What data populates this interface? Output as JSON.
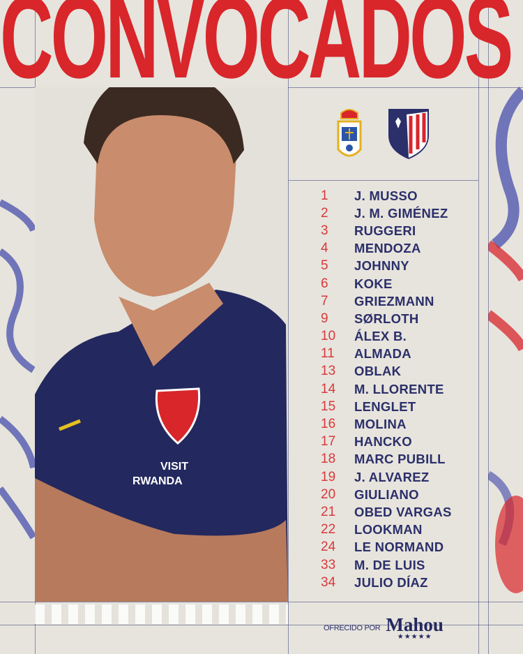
{
  "header": {
    "title": "CONVOCADOS"
  },
  "colors": {
    "title_red": "#d8262b",
    "navy": "#2b2f6a",
    "number_red": "#d8393c",
    "background": "#e7e4dd"
  },
  "crests": {
    "home": "real-oviedo-crest-icon",
    "away": "atletico-madrid-crest-icon"
  },
  "coach_shirt": {
    "sponsor_line1": "VISIT",
    "sponsor_line2": "RWANDA"
  },
  "squad": [
    {
      "number": "1",
      "name": "J. MUSSO"
    },
    {
      "number": "2",
      "name": "J. M. GIMÉNEZ"
    },
    {
      "number": "3",
      "name": "RUGGERI"
    },
    {
      "number": "4",
      "name": "MENDOZA"
    },
    {
      "number": "5",
      "name": "JOHNNY"
    },
    {
      "number": "6",
      "name": "KOKE"
    },
    {
      "number": "7",
      "name": "GRIEZMANN"
    },
    {
      "number": "9",
      "name": "SØRLOTH"
    },
    {
      "number": "10",
      "name": "ÁLEX B."
    },
    {
      "number": "11",
      "name": "ALMADA"
    },
    {
      "number": "13",
      "name": "OBLAK"
    },
    {
      "number": "14",
      "name": "M. LLORENTE"
    },
    {
      "number": "15",
      "name": "LENGLET"
    },
    {
      "number": "16",
      "name": "MOLINA"
    },
    {
      "number": "17",
      "name": "HANCKO"
    },
    {
      "number": "18",
      "name": "MARC PUBILL"
    },
    {
      "number": "19",
      "name": "J. ALVAREZ"
    },
    {
      "number": "20",
      "name": "GIULIANO"
    },
    {
      "number": "21",
      "name": "OBED VARGAS"
    },
    {
      "number": "22",
      "name": "LOOKMAN"
    },
    {
      "number": "24",
      "name": "LE NORMAND"
    },
    {
      "number": "33",
      "name": "M. DE LUIS"
    },
    {
      "number": "34",
      "name": "JULIO DÍAZ"
    }
  ],
  "sponsor": {
    "offered_by": "OFRECIDO POR",
    "brand": "Mahou",
    "stars": "★★★★★"
  }
}
